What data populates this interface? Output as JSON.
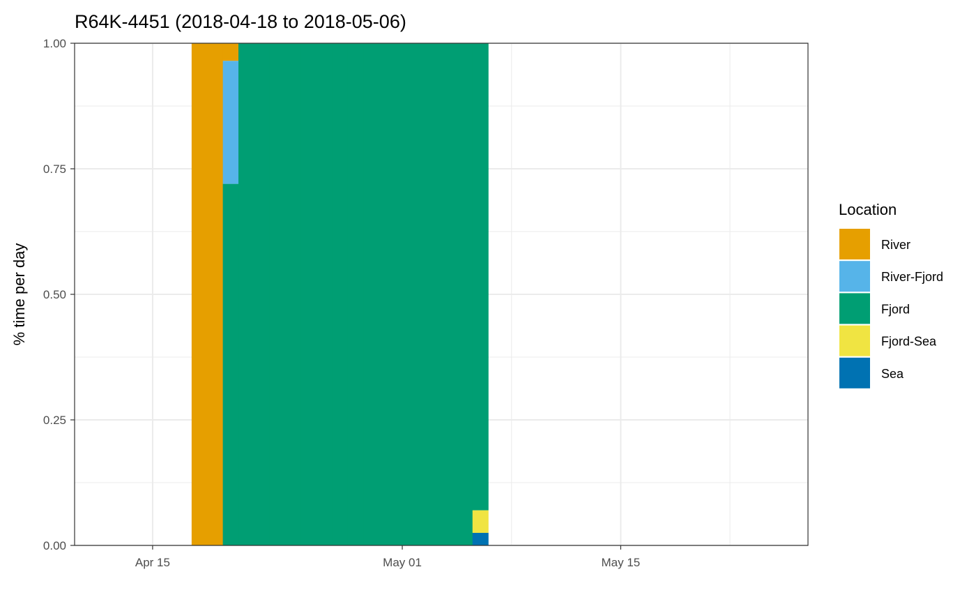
{
  "chart_data": {
    "type": "bar",
    "stacked": true,
    "title": "R64K-4451 (2018-04-18 to 2018-05-06)",
    "xlabel": "",
    "ylabel": "% time per day",
    "x_unit": "date",
    "x_range": [
      "2018-04-10",
      "2018-05-27"
    ],
    "ylim": [
      0,
      1
    ],
    "x_ticks": [
      {
        "date": "2018-04-15",
        "label": "Apr 15"
      },
      {
        "date": "2018-05-01",
        "label": "May 01"
      },
      {
        "date": "2018-05-15",
        "label": "May 15"
      }
    ],
    "y_ticks": [
      {
        "value": 0,
        "label": "0.00"
      },
      {
        "value": 0.25,
        "label": "0.25"
      },
      {
        "value": 0.5,
        "label": "0.50"
      },
      {
        "value": 0.75,
        "label": "0.75"
      },
      {
        "value": 1,
        "label": "1.00"
      }
    ],
    "grid": true,
    "legend": {
      "title": "Location",
      "position": "right",
      "entries": [
        {
          "name": "River",
          "color": "#E69F00"
        },
        {
          "name": "River-Fjord",
          "color": "#56B4E9"
        },
        {
          "name": "Fjord",
          "color": "#009E73"
        },
        {
          "name": "Fjord-Sea",
          "color": "#F0E442"
        },
        {
          "name": "Sea",
          "color": "#0072B2"
        }
      ]
    },
    "bars": [
      {
        "date": "2018-04-18",
        "values": {
          "River": 1.0
        }
      },
      {
        "date": "2018-04-19",
        "values": {
          "River": 1.0
        }
      },
      {
        "date": "2018-04-20",
        "values": {
          "Fjord": 0.72,
          "River-Fjord": 0.245,
          "River": 0.035
        }
      },
      {
        "date": "2018-04-21",
        "values": {
          "Fjord": 1.0
        }
      },
      {
        "date": "2018-04-22",
        "values": {
          "Fjord": 1.0
        }
      },
      {
        "date": "2018-04-23",
        "values": {
          "Fjord": 1.0
        }
      },
      {
        "date": "2018-04-24",
        "values": {
          "Fjord": 1.0
        }
      },
      {
        "date": "2018-04-25",
        "values": {
          "Fjord": 1.0
        }
      },
      {
        "date": "2018-04-26",
        "values": {
          "Fjord": 1.0
        }
      },
      {
        "date": "2018-04-27",
        "values": {
          "Fjord": 1.0
        }
      },
      {
        "date": "2018-04-28",
        "values": {
          "Fjord": 1.0
        }
      },
      {
        "date": "2018-04-29",
        "values": {
          "Fjord": 1.0
        }
      },
      {
        "date": "2018-04-30",
        "values": {
          "Fjord": 1.0
        }
      },
      {
        "date": "2018-05-01",
        "values": {
          "Fjord": 1.0
        }
      },
      {
        "date": "2018-05-02",
        "values": {
          "Fjord": 1.0
        }
      },
      {
        "date": "2018-05-03",
        "values": {
          "Fjord": 1.0
        }
      },
      {
        "date": "2018-05-04",
        "values": {
          "Fjord": 1.0
        }
      },
      {
        "date": "2018-05-05",
        "values": {
          "Fjord": 1.0
        }
      },
      {
        "date": "2018-05-06",
        "values": {
          "Sea": 0.025,
          "Fjord-Sea": 0.045,
          "Fjord": 0.93
        }
      }
    ]
  }
}
